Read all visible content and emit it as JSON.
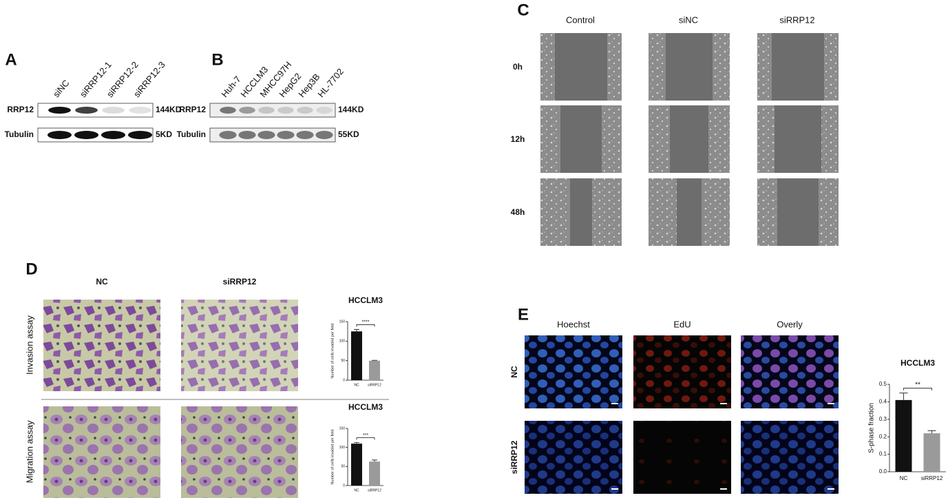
{
  "panels": {
    "A": {
      "label": "A",
      "lanes": [
        "siNC",
        "siRRP12-1",
        "siRRP12-2",
        "siRRP12-3"
      ],
      "rows": [
        "RRP12",
        "Tubulin"
      ],
      "sizes": [
        "144KD",
        "5KD"
      ]
    },
    "B": {
      "label": "B",
      "lanes": [
        "Huh-7",
        "HCCLM3",
        "MHCC97H",
        "HepG2",
        "Hep3B",
        "HL-7702"
      ],
      "rows": [
        "RRP12",
        "Tubulin"
      ],
      "sizes": [
        "144KD",
        "55KD"
      ]
    },
    "C": {
      "label": "C",
      "columns": [
        "Control",
        "siNC",
        "siRRP12"
      ],
      "rows": [
        "0h",
        "12h",
        "48h"
      ]
    },
    "D": {
      "label": "D",
      "columns": [
        "NC",
        "siRRP12"
      ],
      "rows": [
        "Invasion assay",
        "Migration assay"
      ]
    },
    "E": {
      "label": "E",
      "columns": [
        "Hoechst",
        "EdU",
        "Overly"
      ],
      "rows": [
        "NC",
        "siRRP12"
      ]
    }
  },
  "chart_data": [
    {
      "type": "bar",
      "title": "HCCLM3",
      "y_label": "Number of cells invaded per field",
      "categories": [
        "NC",
        "siRRP12"
      ],
      "values": [
        125,
        50
      ],
      "errors": [
        5,
        1
      ],
      "colors": [
        "#111111",
        "#9a9a9a"
      ],
      "significance": "****",
      "ylim": [
        0,
        150
      ],
      "yticks": [
        0,
        50,
        100,
        150
      ]
    },
    {
      "type": "bar",
      "title": "HCCLM3",
      "y_label": "Number of cells invaded per field",
      "categories": [
        "NC",
        "siRRP12"
      ],
      "values": [
        110,
        63
      ],
      "errors": [
        3,
        4
      ],
      "colors": [
        "#111111",
        "#9a9a9a"
      ],
      "significance": "***",
      "ylim": [
        0,
        150
      ],
      "yticks": [
        0,
        50,
        100,
        150
      ]
    },
    {
      "type": "bar",
      "title": "HCCLM3",
      "y_label": "S-phase fraction",
      "categories": [
        "NC",
        "siRRP12"
      ],
      "values": [
        0.41,
        0.22
      ],
      "errors": [
        0.04,
        0.015
      ],
      "colors": [
        "#111111",
        "#9a9a9a"
      ],
      "significance": "**",
      "ylim": [
        0,
        0.5
      ],
      "yticks": [
        {
          "value": 0,
          "label": "0.0"
        },
        0.1,
        0.2,
        0.3,
        0.4,
        0.5
      ]
    }
  ]
}
